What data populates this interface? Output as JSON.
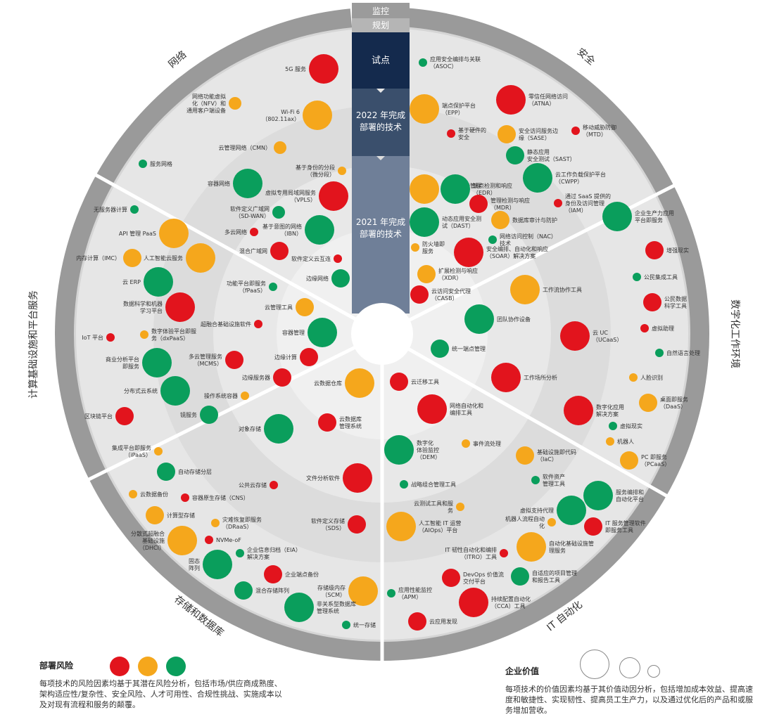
{
  "palette": {
    "outer_ring": "#9a9a9a",
    "ring_network_security": "#d5d5d5",
    "ring_inner1": "#e3e3e3",
    "ring_inner2": "#ececec",
    "ring_inner3": "#f3f3f3",
    "divider": "#ffffff",
    "bubble_red": "#e2141d",
    "bubble_orange": "#f5a71c",
    "bubble_green": "#0a9e5c",
    "col_top": "#9b9b9b",
    "col_pilot": "#142a4d",
    "col_2022": "#3a4f6c",
    "col_2021": "#6f7f98"
  },
  "stages": {
    "monitor": "监控",
    "plan": "规划",
    "pilot": "试点",
    "done_2022": "2022 年完成\n部署的技术",
    "done_2021": "2021 年完成\n部署的技术"
  },
  "sectors": {
    "network": "网络",
    "security": "安全",
    "digital_workplace": "数字化工作环境",
    "it_automation": "IT 自动化",
    "storage_db": "存储和数据库",
    "compute_paas": "计算基础设施和平台服务"
  },
  "legend": {
    "risk_title": "部署风险",
    "risk_desc": "每项技术的风险因素均基于其潜在风险分析，包括市场/供应商成熟度、架构适应性/复杂性、安全风险、人才可用性、合规性挑战、实施成本以及对现有流程和服务的颠覆。",
    "value_title": "企业价值",
    "value_desc": "每项技术的价值因素均基于其价值动因分析，包括增加成本效益、提高速度和敏捷性、实现韧性、提高员工生产力，以及通过优化后的产品和或服务增加营收。"
  },
  "technologies": [
    {
      "id": "5g",
      "label": "5G 服务",
      "risk": "red",
      "value": "large"
    },
    {
      "id": "nfv",
      "label": "网络功能虚拟\n化（NFV）和\n通用客户端设备",
      "risk": "orange",
      "value": "small"
    },
    {
      "id": "wifi6",
      "label": "Wi-Fi 6\n（802.11ax）",
      "risk": "orange",
      "value": "large"
    },
    {
      "id": "cmn",
      "label": "云管理网络（CMN）",
      "risk": "orange",
      "value": "small"
    },
    {
      "id": "svcnet",
      "label": "服务网格",
      "risk": "green",
      "value": "tiny"
    },
    {
      "id": "idseg",
      "label": "基于身份的分段\n（微分段）",
      "risk": "orange",
      "value": "tiny"
    },
    {
      "id": "container_net",
      "label": "容器网络",
      "risk": "green",
      "value": "large"
    },
    {
      "id": "vpls",
      "label": "虚拟专用局域网服务\n（VPLS）",
      "risk": "red",
      "value": "large"
    },
    {
      "id": "sdwan",
      "label": "软件定义广域网\n（SD-WAN）",
      "risk": "green",
      "value": "small"
    },
    {
      "id": "multicloud_net",
      "label": "多云网络",
      "risk": "red",
      "value": "tiny"
    },
    {
      "id": "ibn",
      "label": "基于意图的网络\n（IBN）",
      "risk": "green",
      "value": "large"
    },
    {
      "id": "hybrid_wan",
      "label": "混合广域网",
      "risk": "red",
      "value": "medium"
    },
    {
      "id": "sd_edge",
      "label": "软件定义云互连",
      "risk": "red",
      "value": "tiny"
    },
    {
      "id": "edge_net",
      "label": "边缘网络",
      "risk": "green",
      "value": "medium"
    },
    {
      "id": "asoc",
      "label": "应用安全编排与关联\n（ASOC）",
      "risk": "green",
      "value": "tiny"
    },
    {
      "id": "atna",
      "label": "零信任网络访问\n（ATNA）",
      "risk": "red",
      "value": "large"
    },
    {
      "id": "epp",
      "label": "端点保护平台\n（EPP）",
      "risk": "orange",
      "value": "large"
    },
    {
      "id": "hwsec",
      "label": "基于硬件的\n安全",
      "risk": "red",
      "value": "tiny"
    },
    {
      "id": "sase",
      "label": "安全访问服务边\n缘（SASE）",
      "risk": "orange",
      "value": "medium"
    },
    {
      "id": "mtd",
      "label": "移动威胁防御\n（MTD）",
      "risk": "red",
      "value": "tiny"
    },
    {
      "id": "sast",
      "label": "静态应用\n安全测试（SAST）",
      "risk": "green",
      "value": "medium"
    },
    {
      "id": "cspm",
      "label": "云安全态势管理\n（CSPM）",
      "risk": "orange",
      "value": "large"
    },
    {
      "id": "edr",
      "label": "端点检测和响应\n（EDR）",
      "risk": "green",
      "value": "large"
    },
    {
      "id": "cwpp",
      "label": "云工作负载保护平台\n（CWPP）",
      "risk": "green",
      "value": "large"
    },
    {
      "id": "mdr",
      "label": "管理检测与响应\n（MDR）",
      "risk": "red",
      "value": "medium"
    },
    {
      "id": "iam",
      "label": "通过 SaaS 提供的\n身份及访问管理\n（IAM）",
      "risk": "red",
      "value": "tiny"
    },
    {
      "id": "dast",
      "label": "动态应用安全测\n试（DAST）",
      "risk": "green",
      "value": "large"
    },
    {
      "id": "dbaudit",
      "label": "数据库审计与防护",
      "risk": "orange",
      "value": "medium"
    },
    {
      "id": "nac",
      "label": "网络访问控制（NAC）\n技术",
      "risk": "green",
      "value": "tiny"
    },
    {
      "id": "fwaas",
      "label": "防火墙即\n服务",
      "risk": "orange",
      "value": "tiny"
    },
    {
      "id": "soar",
      "label": "安全编排、自动化和响应\n（SOAR）解决方案",
      "risk": "red",
      "value": "large"
    },
    {
      "id": "xdr",
      "label": "扩展检测与响应\n（XDR）",
      "risk": "orange",
      "value": "medium"
    },
    {
      "id": "casb",
      "label": "云访问安全代理\n（CASB）",
      "risk": "red",
      "value": "medium"
    },
    {
      "id": "empplat",
      "label": "企业生产力应用\n平台即服务",
      "risk": "green",
      "value": "large"
    },
    {
      "id": "ar",
      "label": "增强现实",
      "risk": "red",
      "value": "medium"
    },
    {
      "id": "citizen",
      "label": "公民集成工具",
      "risk": "green",
      "value": "tiny"
    },
    {
      "id": "citizen_ds",
      "label": "公民数据\n科学工具",
      "risk": "red",
      "value": "medium"
    },
    {
      "id": "va",
      "label": "虚拟助理",
      "risk": "red",
      "value": "tiny"
    },
    {
      "id": "nlp",
      "label": "自然语言处理",
      "risk": "green",
      "value": "tiny"
    },
    {
      "id": "wsm",
      "label": "工作流协作工具",
      "risk": "orange",
      "value": "large"
    },
    {
      "id": "teamcollab",
      "label": "团队协作设备",
      "risk": "green",
      "value": "large"
    },
    {
      "id": "ucaas",
      "label": "云 UC\n（UCaaS）",
      "risk": "red",
      "value": "large"
    },
    {
      "id": "uem",
      "label": "统一端点管理",
      "risk": "green",
      "value": "medium"
    },
    {
      "id": "face",
      "label": "人脸识别",
      "risk": "orange",
      "value": "tiny"
    },
    {
      "id": "daas",
      "label": "桌面即服务\n（DaaS）",
      "risk": "orange",
      "value": "medium"
    },
    {
      "id": "workanalytics",
      "label": "工作场所分析",
      "risk": "red",
      "value": "large"
    },
    {
      "id": "dax",
      "label": "数字化应用\n解决方案",
      "risk": "red",
      "value": "large"
    },
    {
      "id": "vr",
      "label": "虚拟现实",
      "risk": "green",
      "value": "tiny"
    },
    {
      "id": "robot",
      "label": "机器人",
      "risk": "orange",
      "value": "tiny"
    },
    {
      "id": "pcaas",
      "label": "PC 即服务\n（PCaaS）",
      "risk": "orange",
      "value": "medium"
    },
    {
      "id": "cloudmig",
      "label": "云迁移工具",
      "risk": "red",
      "value": "medium"
    },
    {
      "id": "netauto",
      "label": "网络自动化和\n编排工具",
      "risk": "red",
      "value": "large"
    },
    {
      "id": "dem",
      "label": "数字化\n体验监控\n（DEM）",
      "risk": "green",
      "value": "large"
    },
    {
      "id": "eventproc",
      "label": "事件流处理",
      "risk": "orange",
      "value": "tiny"
    },
    {
      "id": "iac",
      "label": "基础设施即代码\n（IaC）",
      "risk": "orange",
      "value": "medium"
    },
    {
      "id": "stratportfolio",
      "label": "战略组合管理工具",
      "risk": "green",
      "value": "tiny"
    },
    {
      "id": "sam",
      "label": "软件资产\n管理工具",
      "risk": "green",
      "value": "tiny"
    },
    {
      "id": "svcorch",
      "label": "服务编排和\n自动化平台",
      "risk": "green",
      "value": "large"
    },
    {
      "id": "cloudtest",
      "label": "云测试工具和服\n务",
      "risk": "orange",
      "value": "tiny"
    },
    {
      "id": "vagent",
      "label": "虚拟支持代理",
      "risk": "green",
      "value": "large"
    },
    {
      "id": "aiops",
      "label": "人工智能 IT 运营\n（AIOps）平台",
      "risk": "orange",
      "value": "large"
    },
    {
      "id": "rpa",
      "label": "机器人流程自动\n化",
      "risk": "orange",
      "value": "tiny"
    },
    {
      "id": "itsm",
      "label": "IT 服务管理软件\n即服务工具",
      "risk": "red",
      "value": "medium"
    },
    {
      "id": "autoinfra",
      "label": "自动化基础设施管\n理服务",
      "risk": "orange",
      "value": "large"
    },
    {
      "id": "itro",
      "label": "IT 韧性自动化和编排\n（ITRO）工具",
      "risk": "red",
      "value": "tiny"
    },
    {
      "id": "devops",
      "label": "DevOps 价值流\n交付平台",
      "risk": "red",
      "value": "medium"
    },
    {
      "id": "apm",
      "label": "应用性能监控\n（APM）",
      "risk": "green",
      "value": "tiny"
    },
    {
      "id": "adaptreport",
      "label": "自适应的项目管理\n和报告工具",
      "risk": "green",
      "value": "medium"
    },
    {
      "id": "cca",
      "label": "持续配置自动化\n（CCA）工具",
      "risk": "red",
      "value": "large"
    },
    {
      "id": "cloudcost",
      "label": "云应用发现",
      "risk": "red",
      "value": "medium"
    },
    {
      "id": "clouddw",
      "label": "云数据仓库",
      "risk": "orange",
      "value": "large"
    },
    {
      "id": "objstore",
      "label": "对象存储",
      "risk": "green",
      "value": "large"
    },
    {
      "id": "clouddbm",
      "label": "云数据库\n管理系统",
      "risk": "red",
      "value": "medium"
    },
    {
      "id": "fileanalysis",
      "label": "文件分析软件",
      "risk": "red",
      "value": "large"
    },
    {
      "id": "autotier",
      "label": "自动存储分层",
      "risk": "green",
      "value": "medium"
    },
    {
      "id": "publiccloud",
      "label": "公共云存储",
      "risk": "red",
      "value": "tiny"
    },
    {
      "id": "clouddr",
      "label": "云数据备份",
      "risk": "orange",
      "value": "tiny"
    },
    {
      "id": "cns",
      "label": "容器原生存储（CNS）",
      "risk": "red",
      "value": "tiny"
    },
    {
      "id": "computstore",
      "label": "计算型存储",
      "risk": "orange",
      "value": "medium"
    },
    {
      "id": "draas",
      "label": "灾难恢复即服务\n（DRaaS）",
      "risk": "orange",
      "value": "tiny"
    },
    {
      "id": "sds",
      "label": "软件定义存储\n（SDS）",
      "risk": "red",
      "value": "medium"
    },
    {
      "id": "hci",
      "label": "分散式超融合\n基础设施\n（DHCI）",
      "risk": "orange",
      "value": "large"
    },
    {
      "id": "nvmeof",
      "label": "NVMe-oF",
      "risk": "red",
      "value": "tiny"
    },
    {
      "id": "eia",
      "label": "企业信息归档（EIA）\n解决方案",
      "risk": "green",
      "value": "tiny"
    },
    {
      "id": "persistent",
      "label": "固态\n阵列",
      "risk": "green",
      "value": "large"
    },
    {
      "id": "entbackup",
      "label": "企业端点备份",
      "risk": "red",
      "value": "medium"
    },
    {
      "id": "scm",
      "label": "存储级内存\n（SCM）",
      "risk": "orange",
      "value": "large"
    },
    {
      "id": "hybridarray",
      "label": "混合存储阵列",
      "risk": "green",
      "value": "medium"
    },
    {
      "id": "nonrel",
      "label": "非关系型数据库\n管理系统",
      "risk": "green",
      "value": "large"
    },
    {
      "id": "unistore",
      "label": "统一存储",
      "risk": "green",
      "value": "tiny"
    },
    {
      "id": "serverless",
      "label": "无服务器计算",
      "risk": "green",
      "value": "tiny"
    },
    {
      "id": "apimgmt",
      "label": "API 管理 PaaS",
      "risk": "orange",
      "value": "large"
    },
    {
      "id": "imc",
      "label": "内存计算（IMC）",
      "risk": "orange",
      "value": "medium"
    },
    {
      "id": "aicloud",
      "label": "人工智能云服务",
      "risk": "orange",
      "value": "large"
    },
    {
      "id": "clouderp",
      "label": "云 ERP",
      "risk": "green",
      "value": "large"
    },
    {
      "id": "dsml",
      "label": "数据科学和机器\n学习平台",
      "risk": "red",
      "value": "large"
    },
    {
      "id": "iot",
      "label": "IoT 平台",
      "risk": "red",
      "value": "tiny"
    },
    {
      "id": "dxpaas",
      "label": "数字体验平台即服\n务（dxPaaS）",
      "risk": "orange",
      "value": "tiny"
    },
    {
      "id": "bapaas",
      "label": "商业分析平台\n即服务",
      "risk": "green",
      "value": "large"
    },
    {
      "id": "distcloud",
      "label": "分布式云系统",
      "risk": "green",
      "value": "large"
    },
    {
      "id": "blockchain",
      "label": "区块链平台",
      "risk": "red",
      "value": "medium"
    },
    {
      "id": "mirror",
      "label": "镜服务",
      "risk": "green",
      "value": "medium"
    },
    {
      "id": "ipaas",
      "label": "集成平台即服务\n（iPaaS）",
      "risk": "orange",
      "value": "tiny"
    },
    {
      "id": "fpaas",
      "label": "功能平台即服务\n（fPaaS）",
      "risk": "green",
      "value": "tiny"
    },
    {
      "id": "cloudmgmt",
      "label": "云管理工具",
      "risk": "orange",
      "value": "medium"
    },
    {
      "id": "hyperconv",
      "label": "超融合基础设施软件",
      "risk": "red",
      "value": "tiny"
    },
    {
      "id": "containermgmt",
      "label": "容器管理",
      "risk": "green",
      "value": "large"
    },
    {
      "id": "mcms",
      "label": "多云管理服务\n（MCMS）",
      "risk": "red",
      "value": "medium"
    },
    {
      "id": "edgecomp",
      "label": "边缘计算",
      "risk": "red",
      "value": "medium"
    },
    {
      "id": "edgesrv",
      "label": "边缘服务器",
      "risk": "red",
      "value": "medium"
    },
    {
      "id": "oscontainer",
      "label": "操作系统容器",
      "risk": "orange",
      "value": "tiny"
    }
  ]
}
